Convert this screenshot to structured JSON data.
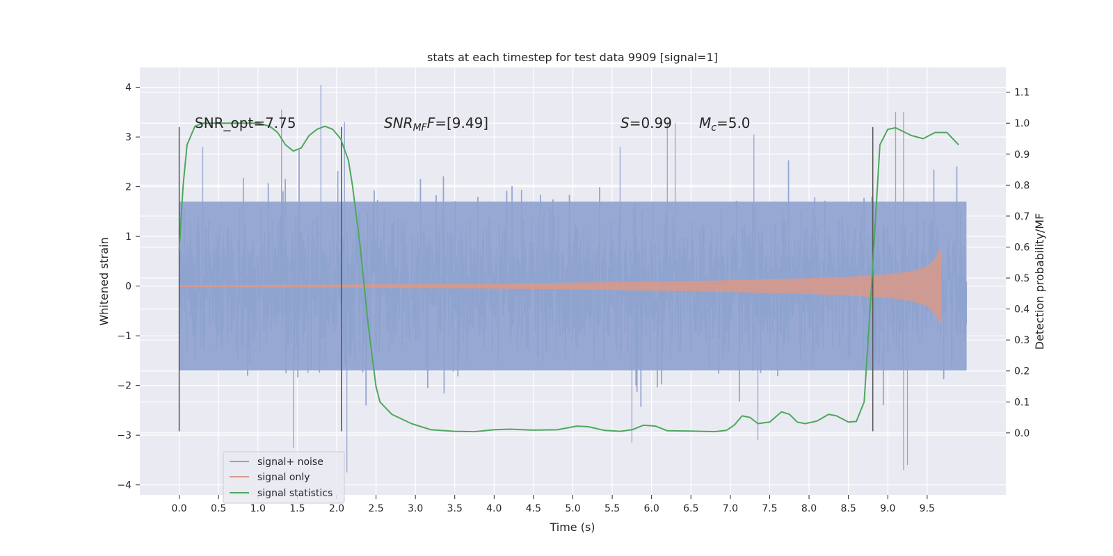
{
  "chart_data": {
    "type": "line",
    "title": "stats at each timestep for test data 9909 [signal=1]",
    "xlabel": "Time (s)",
    "ylabel_left": "Whitened strain",
    "ylabel_right": "Detection probability/MF",
    "xlim": [
      -0.5,
      10.5
    ],
    "ylim_left": [
      -4.2,
      4.4
    ],
    "ylim_right": [
      -0.2,
      1.18
    ],
    "x_ticks": [
      "0.0",
      "0.5",
      "1.0",
      "1.5",
      "2.0",
      "2.5",
      "3.0",
      "3.5",
      "4.0",
      "4.5",
      "5.0",
      "5.5",
      "6.0",
      "6.5",
      "7.0",
      "7.5",
      "8.0",
      "8.5",
      "9.0",
      "9.5"
    ],
    "y_ticks_left": [
      "4",
      "3",
      "2",
      "1",
      "0",
      "−1",
      "−2",
      "−3",
      "−4"
    ],
    "y_ticks_right": [
      "1.1",
      "1.0",
      "0.9",
      "0.8",
      "0.7",
      "0.6",
      "0.5",
      "0.4",
      "0.3",
      "0.2",
      "0.1",
      "0.0"
    ],
    "grid": true,
    "annotations": {
      "snr_opt": "SNR_opt=7.75",
      "snr_mf_base": "SNR",
      "snr_mf_sub": "MF",
      "snr_mf_value": "=[9.49]",
      "s_label": "S",
      "s_value": "=0.99",
      "mc_base": "M",
      "mc_sub": "c",
      "mc_value": "=5.0"
    },
    "vertical_markers_x": [
      0.0,
      2.06,
      8.81
    ],
    "vertical_markers_range": [
      -2.92,
      3.2
    ],
    "series": [
      {
        "name": "signal+ noise",
        "axis": "left",
        "color": "#8ea2cf",
        "x_range": [
          0.0,
          10.0
        ],
        "core_amplitude": 1.7,
        "peak_spikes": [
          [
            0.3,
            2.8
          ],
          [
            1.8,
            4.05
          ],
          [
            2.1,
            3.3
          ],
          [
            2.13,
            -3.75
          ],
          [
            5.6,
            2.8
          ],
          [
            5.75,
            -3.15
          ],
          [
            6.2,
            3.3
          ],
          [
            6.3,
            3.28
          ],
          [
            7.3,
            3.05
          ],
          [
            7.35,
            -3.1
          ],
          [
            9.1,
            3.5
          ],
          [
            9.2,
            3.5
          ],
          [
            9.2,
            -3.7
          ],
          [
            9.25,
            -3.6
          ],
          [
            1.45,
            -3.25
          ],
          [
            1.3,
            3.55
          ]
        ]
      },
      {
        "name": "signal only",
        "axis": "left",
        "color": "#d9998a",
        "x_range": [
          0.0,
          9.68
        ],
        "envelope_points": [
          [
            0.0,
            0.02
          ],
          [
            2.0,
            0.03
          ],
          [
            4.0,
            0.05
          ],
          [
            5.0,
            0.07
          ],
          [
            6.0,
            0.09
          ],
          [
            7.0,
            0.12
          ],
          [
            7.5,
            0.14
          ],
          [
            8.0,
            0.16
          ],
          [
            8.5,
            0.19
          ],
          [
            9.0,
            0.24
          ],
          [
            9.3,
            0.3
          ],
          [
            9.5,
            0.4
          ],
          [
            9.6,
            0.55
          ],
          [
            9.66,
            0.75
          ],
          [
            9.68,
            0.7
          ]
        ]
      },
      {
        "name": "signal statistics",
        "axis": "right",
        "color": "#4ea75c",
        "points": [
          [
            0.0,
            0.59
          ],
          [
            0.05,
            0.8
          ],
          [
            0.1,
            0.93
          ],
          [
            0.2,
            0.99
          ],
          [
            0.3,
            1.0
          ],
          [
            0.6,
            1.0
          ],
          [
            1.0,
            1.0
          ],
          [
            1.15,
            0.99
          ],
          [
            1.25,
            0.97
          ],
          [
            1.35,
            0.93
          ],
          [
            1.45,
            0.91
          ],
          [
            1.55,
            0.92
          ],
          [
            1.65,
            0.96
          ],
          [
            1.75,
            0.98
          ],
          [
            1.85,
            0.99
          ],
          [
            1.95,
            0.98
          ],
          [
            2.05,
            0.95
          ],
          [
            2.15,
            0.88
          ],
          [
            2.2,
            0.8
          ],
          [
            2.3,
            0.6
          ],
          [
            2.4,
            0.35
          ],
          [
            2.5,
            0.15
          ],
          [
            2.55,
            0.1
          ],
          [
            2.7,
            0.06
          ],
          [
            2.95,
            0.03
          ],
          [
            3.2,
            0.01
          ],
          [
            3.5,
            0.005
          ],
          [
            3.75,
            0.004
          ],
          [
            4.0,
            0.01
          ],
          [
            4.2,
            0.012
          ],
          [
            4.5,
            0.009
          ],
          [
            4.8,
            0.01
          ],
          [
            5.05,
            0.022
          ],
          [
            5.2,
            0.02
          ],
          [
            5.4,
            0.008
          ],
          [
            5.6,
            0.005
          ],
          [
            5.75,
            0.01
          ],
          [
            5.9,
            0.025
          ],
          [
            6.05,
            0.022
          ],
          [
            6.2,
            0.007
          ],
          [
            6.5,
            0.006
          ],
          [
            6.8,
            0.004
          ],
          [
            6.95,
            0.008
          ],
          [
            7.05,
            0.025
          ],
          [
            7.15,
            0.055
          ],
          [
            7.25,
            0.05
          ],
          [
            7.35,
            0.03
          ],
          [
            7.5,
            0.035
          ],
          [
            7.65,
            0.068
          ],
          [
            7.75,
            0.06
          ],
          [
            7.85,
            0.035
          ],
          [
            7.95,
            0.03
          ],
          [
            8.1,
            0.038
          ],
          [
            8.25,
            0.06
          ],
          [
            8.35,
            0.055
          ],
          [
            8.5,
            0.035
          ],
          [
            8.6,
            0.037
          ],
          [
            8.7,
            0.1
          ],
          [
            8.8,
            0.5
          ],
          [
            8.9,
            0.93
          ],
          [
            9.0,
            0.98
          ],
          [
            9.1,
            0.985
          ],
          [
            9.3,
            0.96
          ],
          [
            9.45,
            0.95
          ],
          [
            9.6,
            0.97
          ],
          [
            9.75,
            0.97
          ],
          [
            9.9,
            0.93
          ]
        ]
      }
    ],
    "legend_position": "lower-left",
    "colors": {
      "plot_background": "#eaeaf2",
      "grid": "#ffffff",
      "marker_line": "#555555"
    }
  }
}
